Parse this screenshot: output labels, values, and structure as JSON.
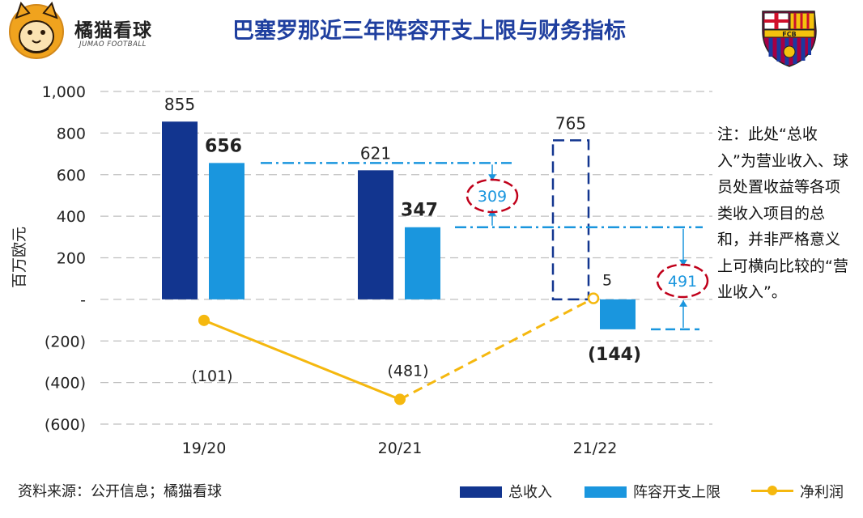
{
  "header": {
    "brand_name": "橘猫看球",
    "brand_sub": "JUMAO FOOTBALL",
    "title": "巴塞罗那近三年阵容开支上限与财务指标",
    "badge_text": "FCB"
  },
  "chart_data": {
    "type": "bar",
    "title": "巴塞罗那近三年阵容开支上限与财务指标",
    "ylabel": "百万欧元",
    "xlabel": "",
    "ylim": [
      -600,
      1000
    ],
    "yticks": [
      1000,
      800,
      600,
      400,
      200,
      0,
      -200,
      -400,
      -600
    ],
    "ytick_labels": [
      "1,000",
      "800",
      "600",
      "400",
      "200",
      "-",
      "(200)",
      "(400)",
      "(600)"
    ],
    "categories": [
      "19/20",
      "20/21",
      "21/22"
    ],
    "series": [
      {
        "name": "总收入",
        "type": "bar",
        "values": [
          855,
          621,
          765
        ],
        "labels": [
          "855",
          "621",
          "765"
        ],
        "dashed": [
          false,
          false,
          true
        ]
      },
      {
        "name": "阵容开支上限",
        "type": "bar",
        "values": [
          656,
          347,
          -144
        ],
        "labels": [
          "656",
          "347",
          "(144)"
        ]
      },
      {
        "name": "净利润",
        "type": "line",
        "values": [
          -101,
          -481,
          5
        ],
        "labels": [
          "(101)",
          "(481)",
          "5"
        ]
      }
    ],
    "annotations": [
      {
        "text": "309",
        "from": 656,
        "to": 347,
        "between": [
          "20/21",
          "21/22"
        ]
      },
      {
        "text": "491",
        "from": 347,
        "to": -144,
        "between": [
          "21/22",
          "right"
        ]
      }
    ],
    "grid": true,
    "legend": "bottom-right"
  },
  "note": {
    "text": "注：此处“总收入”为营业收入、球员处置收益等各项类收入项目的总和，并非严格意义上可横向比较的“营业收入”。"
  },
  "footer": {
    "source": "资料来源：公开信息；橘猫看球"
  },
  "colors": {
    "revenue": "#12358f",
    "squad_cap": "#1a96de",
    "net_profit": "#f5b80f",
    "title": "#1f3f9f",
    "annotation_ellipse": "#c0001a",
    "annotation_text": "#1a96de",
    "grid": "#bfbfbf"
  }
}
